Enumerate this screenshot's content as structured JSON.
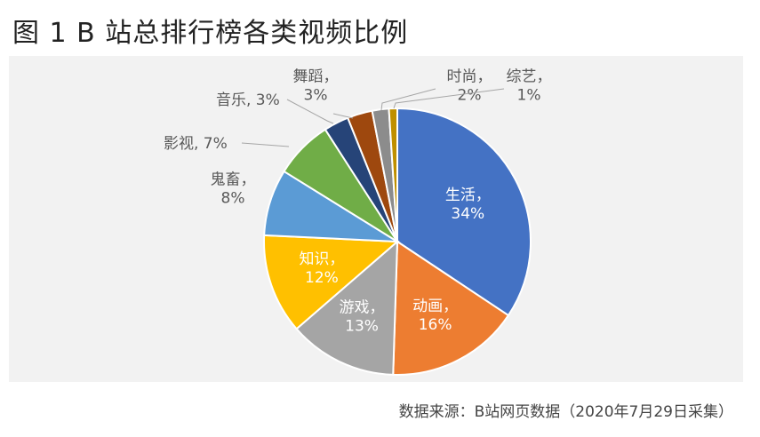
{
  "title": "图 1 B 站总排行榜各类视频比例",
  "source": "数据来源：B站网页数据（2020年7月29日采集）",
  "chart_data": {
    "type": "pie",
    "unit": "%",
    "slices": [
      {
        "name": "生活",
        "value": 34,
        "label_line1": "生活，",
        "label_line2": "34%",
        "color": "#4472c4",
        "text_color": "#ffffff"
      },
      {
        "name": "动画",
        "value": 16,
        "label_line1": "动画，",
        "label_line2": "16%",
        "color": "#ed7d31",
        "text_color": "#ffffff"
      },
      {
        "name": "游戏",
        "value": 13,
        "label_line1": "游戏，",
        "label_line2": "13%",
        "color": "#a5a5a5",
        "text_color": "#ffffff"
      },
      {
        "name": "知识",
        "value": 12,
        "label_line1": "知识，",
        "label_line2": "12%",
        "color": "#ffc000",
        "text_color": "#ffffff"
      },
      {
        "name": "鬼畜",
        "value": 8,
        "label_line1": "鬼畜，",
        "label_line2": "8%",
        "color": "#5b9bd5",
        "text_color": "#595959"
      },
      {
        "name": "影视",
        "value": 7,
        "label_line1": "影视, 7%",
        "label_line2": "",
        "color": "#70ad47",
        "text_color": "#595959"
      },
      {
        "name": "音乐",
        "value": 3,
        "label_line1": "音乐, 3%",
        "label_line2": "",
        "color": "#264478",
        "text_color": "#595959"
      },
      {
        "name": "舞蹈",
        "value": 3,
        "label_line1": "舞蹈，",
        "label_line2": "3%",
        "color": "#9e480e",
        "text_color": "#595959"
      },
      {
        "name": "时尚",
        "value": 2,
        "label_line1": "时尚，",
        "label_line2": "2%",
        "color": "#8c8c8c",
        "text_color": "#595959"
      },
      {
        "name": "综艺",
        "value": 1,
        "label_line1": "综艺，",
        "label_line2": "1%",
        "color": "#bf8f00",
        "text_color": "#595959"
      }
    ],
    "start_angle_deg": 0,
    "direction": "clockwise",
    "legend": "none"
  }
}
